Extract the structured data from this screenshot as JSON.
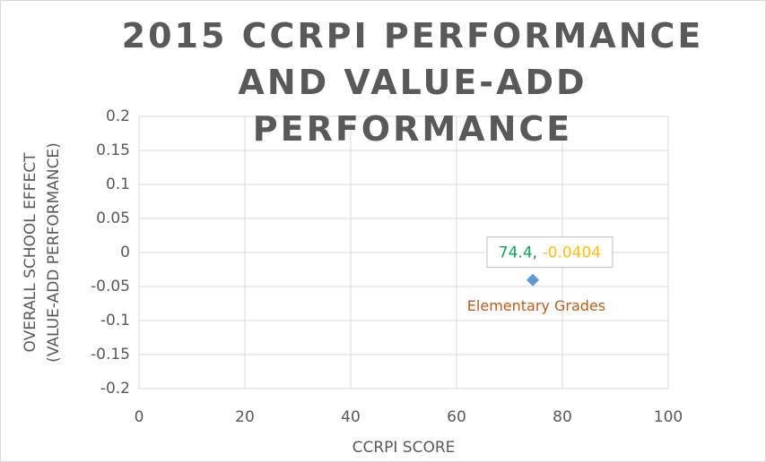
{
  "chart_data": {
    "type": "scatter",
    "title": "2015 CCRPI PERFORMANCE AND VALUE-ADD PERFORMANCE",
    "x_label": "CCRPI SCORE",
    "y_label": [
      "OVERALL SCHOOL EFFECT",
      "(VALUE-ADD PERFORMANCE)"
    ],
    "series": [
      {
        "name": "Elementary Grades",
        "color": "#5b9bd5",
        "x": [
          74.4
        ],
        "values": [
          -0.0404
        ]
      }
    ],
    "xlim": [
      0,
      100
    ],
    "xticks": [
      0,
      20,
      40,
      60,
      80,
      100
    ],
    "ylim": [
      -0.2,
      0.2
    ],
    "yticks": [
      0.2,
      0.15,
      0.1,
      0.05,
      0,
      -0.05,
      -0.1,
      -0.15,
      -0.2
    ],
    "grid": true
  }
}
